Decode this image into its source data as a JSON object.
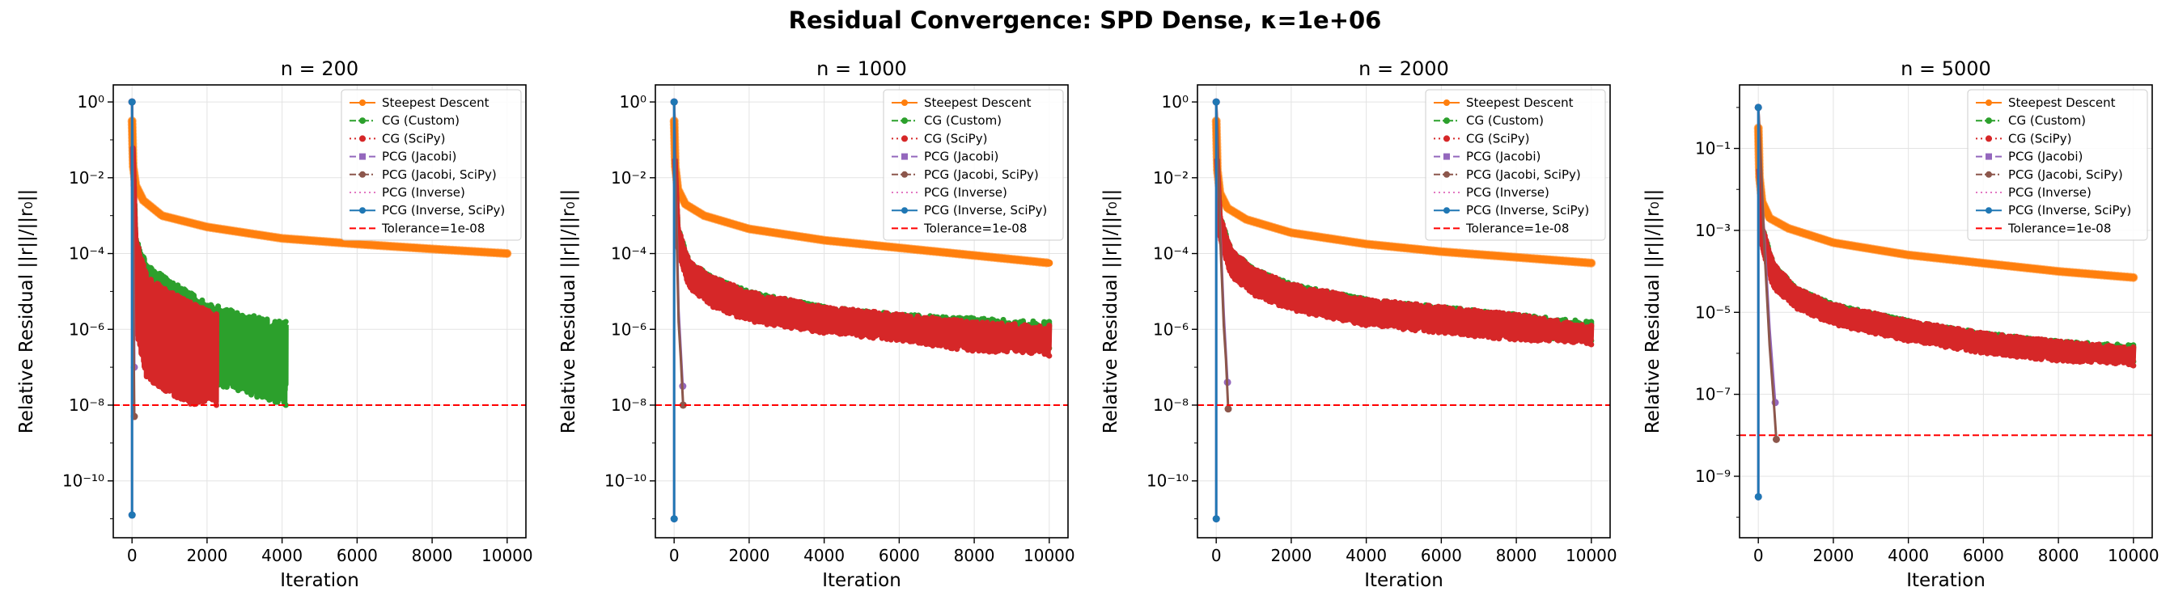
{
  "figure": {
    "title": "Residual Convergence: SPD Dense, κ=1e+06"
  },
  "legend_entries": [
    {
      "label": "Steepest Descent",
      "color": "#ff7f0e",
      "dash": "solid",
      "marker": "circle"
    },
    {
      "label": "CG (Custom)",
      "color": "#2ca02c",
      "dash": "dashdot",
      "marker": "circle"
    },
    {
      "label": "CG (SciPy)",
      "color": "#d62728",
      "dash": "dotted",
      "marker": "circle"
    },
    {
      "label": "PCG (Jacobi)",
      "color": "#9467bd",
      "dash": "dashed",
      "marker": "square"
    },
    {
      "label": "PCG (Jacobi, SciPy)",
      "color": "#8c564b",
      "dash": "dashdot",
      "marker": "circle"
    },
    {
      "label": "PCG (Inverse)",
      "color": "#e377c2",
      "dash": "dotted",
      "marker": "none"
    },
    {
      "label": "PCG (Inverse, SciPy)",
      "color": "#1f77b4",
      "dash": "solid",
      "marker": "circle"
    },
    {
      "label": "Tolerance=1e-08",
      "color": "#ff0000",
      "dash": "dashed",
      "marker": "none"
    }
  ],
  "chart_data": [
    {
      "type": "line",
      "title": "n = 200",
      "xlabel": "Iteration",
      "ylabel": "Relative Residual ||r||/||r₀||",
      "y_scale": "log",
      "xlim": [
        -500,
        10500
      ],
      "ylim_exp": [
        -11.5,
        0.45
      ],
      "xticks": [
        0,
        2000,
        4000,
        6000,
        8000,
        10000
      ],
      "yticks_exp": [
        -10,
        -8,
        -6,
        -4,
        -2,
        0
      ],
      "grid": true,
      "legend_loc": "upper right",
      "tolerance": 1e-08,
      "series": [
        {
          "name": "Steepest Descent",
          "last_iteration": 10000,
          "log_points": [
            [
              1,
              -0.5
            ],
            [
              30,
              -1.7
            ],
            [
              100,
              -2.2
            ],
            [
              300,
              -2.6
            ],
            [
              800,
              -3.0
            ],
            [
              2000,
              -3.3
            ],
            [
              4000,
              -3.6
            ],
            [
              6000,
              -3.75
            ],
            [
              8000,
              -3.88
            ],
            [
              10000,
              -4.0
            ]
          ]
        },
        {
          "name": "CG (Custom)",
          "last_iteration": 4100,
          "band": [
            [
              20,
              -1.2,
              -1.2
            ],
            [
              100,
              -3.6,
              -5.0
            ],
            [
              400,
              -4.3,
              -6.3
            ],
            [
              1000,
              -4.7,
              -7.0
            ],
            [
              2000,
              -5.3,
              -7.4
            ],
            [
              3000,
              -5.6,
              -7.7
            ],
            [
              4100,
              -5.8,
              -8.0
            ]
          ]
        },
        {
          "name": "CG (SciPy)",
          "last_iteration": 2250,
          "band": [
            [
              20,
              -1.2,
              -1.2
            ],
            [
              100,
              -3.6,
              -6.0
            ],
            [
              400,
              -4.6,
              -7.3
            ],
            [
              1000,
              -5.0,
              -7.7
            ],
            [
              1600,
              -5.3,
              -8.0
            ],
            [
              2250,
              -5.6,
              -8.0
            ]
          ]
        },
        {
          "name": "PCG (Jacobi)",
          "last_iteration": 60,
          "log_points": [
            [
              0,
              0
            ],
            [
              10,
              -0.7
            ],
            [
              30,
              -2.5
            ],
            [
              60,
              -7.0
            ]
          ]
        },
        {
          "name": "PCG (Jacobi, SciPy)",
          "last_iteration": 60,
          "log_points": [
            [
              0,
              0
            ],
            [
              10,
              -0.6
            ],
            [
              30,
              -3.0
            ],
            [
              45,
              -6.5
            ],
            [
              60,
              -8.3
            ]
          ]
        },
        {
          "name": "PCG (Inverse)",
          "last_iteration": 1,
          "log_points": [
            [
              0,
              0
            ],
            [
              1,
              -10.9
            ]
          ]
        },
        {
          "name": "PCG (Inverse, SciPy)",
          "last_iteration": 1,
          "log_points": [
            [
              0,
              0
            ],
            [
              1,
              -10.9
            ]
          ]
        }
      ]
    },
    {
      "type": "line",
      "title": "n = 1000",
      "xlabel": "Iteration",
      "ylabel": "Relative Residual ||r||/||r₀||",
      "y_scale": "log",
      "xlim": [
        -500,
        10500
      ],
      "ylim_exp": [
        -11.5,
        0.45
      ],
      "xticks": [
        0,
        2000,
        4000,
        6000,
        8000,
        10000
      ],
      "yticks_exp": [
        -10,
        -8,
        -6,
        -4,
        -2,
        0
      ],
      "grid": true,
      "legend_loc": "upper right",
      "tolerance": 1e-08,
      "series": [
        {
          "name": "Steepest Descent",
          "last_iteration": 10000,
          "log_points": [
            [
              1,
              -0.5
            ],
            [
              30,
              -1.7
            ],
            [
              100,
              -2.3
            ],
            [
              300,
              -2.7
            ],
            [
              800,
              -3.0
            ],
            [
              2000,
              -3.35
            ],
            [
              4000,
              -3.65
            ],
            [
              6000,
              -3.85
            ],
            [
              8000,
              -4.05
            ],
            [
              10000,
              -4.25
            ]
          ]
        },
        {
          "name": "CG (Custom)",
          "last_iteration": 10000,
          "band": [
            [
              20,
              -1.5,
              -1.5
            ],
            [
              100,
              -3.3,
              -3.8
            ],
            [
              400,
              -4.2,
              -4.8
            ],
            [
              1000,
              -4.6,
              -5.3
            ],
            [
              2000,
              -5.0,
              -5.7
            ],
            [
              4000,
              -5.4,
              -6.0
            ],
            [
              6000,
              -5.6,
              -6.2
            ],
            [
              8000,
              -5.7,
              -6.3
            ],
            [
              10000,
              -5.8,
              -6.5
            ]
          ]
        },
        {
          "name": "CG (SciPy)",
          "last_iteration": 10000,
          "band": [
            [
              20,
              -1.5,
              -1.5
            ],
            [
              100,
              -3.3,
              -3.9
            ],
            [
              400,
              -4.2,
              -4.9
            ],
            [
              1000,
              -4.6,
              -5.4
            ],
            [
              2000,
              -5.0,
              -5.8
            ],
            [
              4000,
              -5.4,
              -6.1
            ],
            [
              6000,
              -5.6,
              -6.3
            ],
            [
              8000,
              -5.8,
              -6.6
            ],
            [
              10000,
              -5.9,
              -6.7
            ]
          ]
        },
        {
          "name": "PCG (Jacobi)",
          "last_iteration": 230,
          "log_points": [
            [
              0,
              0
            ],
            [
              20,
              -0.8
            ],
            [
              60,
              -3.0
            ],
            [
              120,
              -5.5
            ],
            [
              230,
              -7.5
            ]
          ]
        },
        {
          "name": "PCG (Jacobi, SciPy)",
          "last_iteration": 240,
          "log_points": [
            [
              0,
              0
            ],
            [
              20,
              -0.7
            ],
            [
              60,
              -3.2
            ],
            [
              120,
              -5.8
            ],
            [
              180,
              -6.8
            ],
            [
              240,
              -8.0
            ]
          ]
        },
        {
          "name": "PCG (Inverse)",
          "last_iteration": 1,
          "log_points": [
            [
              0,
              0
            ],
            [
              1,
              -11.0
            ]
          ]
        },
        {
          "name": "PCG (Inverse, SciPy)",
          "last_iteration": 1,
          "log_points": [
            [
              0,
              0
            ],
            [
              1,
              -11.0
            ]
          ]
        }
      ]
    },
    {
      "type": "line",
      "title": "n = 2000",
      "xlabel": "Iteration",
      "ylabel": "Relative Residual ||r||/||r₀||",
      "y_scale": "log",
      "xlim": [
        -500,
        10500
      ],
      "ylim_exp": [
        -11.5,
        0.45
      ],
      "xticks": [
        0,
        2000,
        4000,
        6000,
        8000,
        10000
      ],
      "yticks_exp": [
        -10,
        -8,
        -6,
        -4,
        -2,
        0
      ],
      "grid": true,
      "legend_loc": "upper right",
      "tolerance": 1e-08,
      "series": [
        {
          "name": "Steepest Descent",
          "last_iteration": 10000,
          "log_points": [
            [
              1,
              -0.5
            ],
            [
              30,
              -1.8
            ],
            [
              100,
              -2.4
            ],
            [
              300,
              -2.8
            ],
            [
              800,
              -3.1
            ],
            [
              2000,
              -3.45
            ],
            [
              4000,
              -3.75
            ],
            [
              6000,
              -3.95
            ],
            [
              8000,
              -4.1
            ],
            [
              10000,
              -4.25
            ]
          ]
        },
        {
          "name": "CG (Custom)",
          "last_iteration": 10000,
          "band": [
            [
              20,
              -1.5,
              -1.5
            ],
            [
              100,
              -3.0,
              -3.5
            ],
            [
              400,
              -3.9,
              -4.5
            ],
            [
              1000,
              -4.4,
              -5.0
            ],
            [
              2000,
              -4.8,
              -5.4
            ],
            [
              4000,
              -5.2,
              -5.8
            ],
            [
              6000,
              -5.4,
              -6.0
            ],
            [
              8000,
              -5.6,
              -6.2
            ],
            [
              10000,
              -5.8,
              -6.3
            ]
          ]
        },
        {
          "name": "CG (SciPy)",
          "last_iteration": 10000,
          "band": [
            [
              20,
              -1.5,
              -1.5
            ],
            [
              100,
              -3.0,
              -3.6
            ],
            [
              400,
              -3.9,
              -4.6
            ],
            [
              1000,
              -4.4,
              -5.1
            ],
            [
              2000,
              -4.8,
              -5.5
            ],
            [
              4000,
              -5.2,
              -5.9
            ],
            [
              6000,
              -5.4,
              -6.1
            ],
            [
              8000,
              -5.6,
              -6.3
            ],
            [
              10000,
              -5.9,
              -6.4
            ]
          ]
        },
        {
          "name": "PCG (Jacobi)",
          "last_iteration": 300,
          "log_points": [
            [
              0,
              0
            ],
            [
              30,
              -0.8
            ],
            [
              100,
              -3.2
            ],
            [
              200,
              -5.6
            ],
            [
              300,
              -7.4
            ]
          ]
        },
        {
          "name": "PCG (Jacobi, SciPy)",
          "last_iteration": 320,
          "log_points": [
            [
              0,
              0
            ],
            [
              30,
              -0.7
            ],
            [
              100,
              -3.4
            ],
            [
              200,
              -5.9
            ],
            [
              260,
              -6.8
            ],
            [
              320,
              -8.1
            ]
          ]
        },
        {
          "name": "PCG (Inverse)",
          "last_iteration": 1,
          "log_points": [
            [
              0,
              0
            ],
            [
              1,
              -11.0
            ]
          ]
        },
        {
          "name": "PCG (Inverse, SciPy)",
          "last_iteration": 1,
          "log_points": [
            [
              0,
              0
            ],
            [
              1,
              -11.0
            ]
          ]
        }
      ]
    },
    {
      "type": "line",
      "title": "n = 5000",
      "xlabel": "Iteration",
      "ylabel": "Relative Residual ||r||/||r₀||",
      "y_scale": "log",
      "xlim": [
        -500,
        10500
      ],
      "ylim_exp": [
        -10.5,
        0.55
      ],
      "xticks": [
        0,
        2000,
        4000,
        6000,
        8000,
        10000
      ],
      "yticks_exp": [
        -9,
        -7,
        -5,
        -3,
        -1
      ],
      "grid": true,
      "legend_loc": "upper right",
      "tolerance": 1e-08,
      "series": [
        {
          "name": "Steepest Descent",
          "last_iteration": 10000,
          "log_points": [
            [
              1,
              -0.5
            ],
            [
              30,
              -1.7
            ],
            [
              100,
              -2.3
            ],
            [
              300,
              -2.7
            ],
            [
              800,
              -2.95
            ],
            [
              2000,
              -3.3
            ],
            [
              4000,
              -3.6
            ],
            [
              6000,
              -3.8
            ],
            [
              8000,
              -4.0
            ],
            [
              10000,
              -4.15
            ]
          ]
        },
        {
          "name": "CG (Custom)",
          "last_iteration": 10000,
          "band": [
            [
              20,
              -1.5,
              -1.5
            ],
            [
              100,
              -2.9,
              -3.3
            ],
            [
              400,
              -3.8,
              -4.3
            ],
            [
              1000,
              -4.4,
              -4.8
            ],
            [
              2000,
              -4.8,
              -5.2
            ],
            [
              4000,
              -5.2,
              -5.6
            ],
            [
              6000,
              -5.5,
              -5.9
            ],
            [
              8000,
              -5.7,
              -6.1
            ],
            [
              10000,
              -5.8,
              -6.2
            ]
          ]
        },
        {
          "name": "CG (SciPy)",
          "last_iteration": 10000,
          "band": [
            [
              20,
              -1.5,
              -1.5
            ],
            [
              100,
              -2.9,
              -3.4
            ],
            [
              400,
              -3.8,
              -4.4
            ],
            [
              1000,
              -4.4,
              -4.9
            ],
            [
              2000,
              -4.8,
              -5.3
            ],
            [
              4000,
              -5.2,
              -5.7
            ],
            [
              6000,
              -5.5,
              -6.0
            ],
            [
              8000,
              -5.7,
              -6.2
            ],
            [
              10000,
              -5.85,
              -6.3
            ]
          ]
        },
        {
          "name": "PCG (Jacobi)",
          "last_iteration": 450,
          "log_points": [
            [
              0,
              0
            ],
            [
              40,
              -0.8
            ],
            [
              150,
              -3.0
            ],
            [
              300,
              -5.4
            ],
            [
              450,
              -7.2
            ]
          ]
        },
        {
          "name": "PCG (Jacobi, SciPy)",
          "last_iteration": 480,
          "log_points": [
            [
              0,
              0
            ],
            [
              40,
              -0.7
            ],
            [
              150,
              -3.2
            ],
            [
              300,
              -5.8
            ],
            [
              420,
              -7.3
            ],
            [
              480,
              -8.1
            ]
          ]
        },
        {
          "name": "PCG (Inverse)",
          "last_iteration": 1,
          "log_points": [
            [
              0,
              0
            ],
            [
              1,
              -9.5
            ]
          ]
        },
        {
          "name": "PCG (Inverse, SciPy)",
          "last_iteration": 1,
          "log_points": [
            [
              0,
              0
            ],
            [
              1,
              -9.5
            ]
          ]
        }
      ]
    }
  ]
}
